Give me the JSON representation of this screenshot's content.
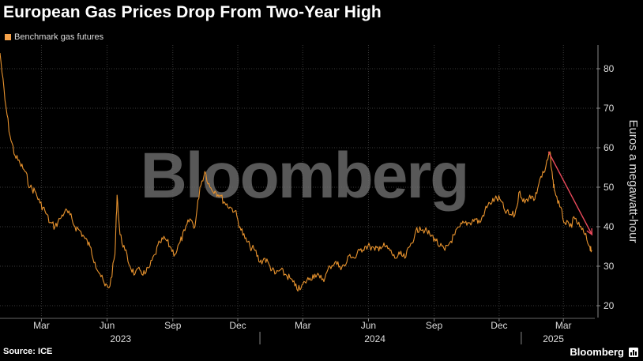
{
  "title": "European Gas Prices Drop From Two-Year High",
  "legend": {
    "label": "Benchmark gas futures",
    "color": "#f5a24a"
  },
  "source": "Source: ICE",
  "brand": "Bloomberg",
  "watermark": "Bloomberg",
  "colors": {
    "line": "#e8932e",
    "annotation": "#e8495a",
    "grid": "#3a3a3a",
    "text": "#dddddd"
  },
  "chart_data": {
    "type": "line",
    "title": "European Gas Prices Drop From Two-Year High",
    "ylabel": "Euros a megawatt-hour",
    "ylim": [
      17,
      86
    ],
    "yticks": [
      20,
      30,
      40,
      50,
      60,
      70,
      80
    ],
    "xlim": [
      "2023-01-02",
      "2025-04-14"
    ],
    "xticks": [
      {
        "date": "2023-03-01",
        "label": "Mar"
      },
      {
        "date": "2023-06-01",
        "label": "Jun"
      },
      {
        "date": "2023-09-01",
        "label": "Sep"
      },
      {
        "date": "2023-12-01",
        "label": "Dec"
      },
      {
        "date": "2024-03-01",
        "label": "Mar"
      },
      {
        "date": "2024-06-01",
        "label": "Jun"
      },
      {
        "date": "2024-09-01",
        "label": "Sep"
      },
      {
        "date": "2024-12-01",
        "label": "Dec"
      },
      {
        "date": "2025-03-01",
        "label": "Mar"
      }
    ],
    "year_labels": [
      {
        "date": "2023-06-20",
        "label": "2023"
      },
      {
        "date": "2024-06-10",
        "label": "2024"
      },
      {
        "date": "2025-02-15",
        "label": "2025"
      }
    ],
    "year_dividers": [
      "2024-01-01",
      "2025-01-01"
    ],
    "grid": true,
    "legend_position": "top-left",
    "series": [
      {
        "name": "Benchmark gas futures",
        "points": [
          [
            "2023-01-02",
            84
          ],
          [
            "2023-01-09",
            72
          ],
          [
            "2023-01-16",
            63
          ],
          [
            "2023-01-23",
            58
          ],
          [
            "2023-01-30",
            56
          ],
          [
            "2023-02-06",
            54
          ],
          [
            "2023-02-13",
            50
          ],
          [
            "2023-02-20",
            49
          ],
          [
            "2023-02-27",
            46
          ],
          [
            "2023-03-06",
            44
          ],
          [
            "2023-03-13",
            41
          ],
          [
            "2023-03-20",
            40
          ],
          [
            "2023-03-27",
            42
          ],
          [
            "2023-04-03",
            44
          ],
          [
            "2023-04-10",
            43
          ],
          [
            "2023-04-17",
            40
          ],
          [
            "2023-04-24",
            39
          ],
          [
            "2023-05-01",
            37
          ],
          [
            "2023-05-08",
            35
          ],
          [
            "2023-05-15",
            31
          ],
          [
            "2023-05-22",
            28
          ],
          [
            "2023-05-29",
            25
          ],
          [
            "2023-06-05",
            25
          ],
          [
            "2023-06-12",
            33
          ],
          [
            "2023-06-15",
            48
          ],
          [
            "2023-06-19",
            38
          ],
          [
            "2023-06-26",
            34
          ],
          [
            "2023-07-03",
            30
          ],
          [
            "2023-07-10",
            28
          ],
          [
            "2023-07-17",
            29
          ],
          [
            "2023-07-24",
            28
          ],
          [
            "2023-07-31",
            30
          ],
          [
            "2023-08-07",
            33
          ],
          [
            "2023-08-14",
            36
          ],
          [
            "2023-08-21",
            37
          ],
          [
            "2023-08-28",
            35
          ],
          [
            "2023-09-04",
            33
          ],
          [
            "2023-09-11",
            36
          ],
          [
            "2023-09-18",
            39
          ],
          [
            "2023-09-25",
            42
          ],
          [
            "2023-10-02",
            40
          ],
          [
            "2023-10-09",
            50
          ],
          [
            "2023-10-16",
            54
          ],
          [
            "2023-10-23",
            50
          ],
          [
            "2023-10-30",
            49
          ],
          [
            "2023-11-06",
            48
          ],
          [
            "2023-11-13",
            46
          ],
          [
            "2023-11-20",
            45
          ],
          [
            "2023-11-27",
            44
          ],
          [
            "2023-12-04",
            40
          ],
          [
            "2023-12-11",
            37
          ],
          [
            "2023-12-18",
            35
          ],
          [
            "2023-12-25",
            34
          ],
          [
            "2024-01-01",
            31
          ],
          [
            "2024-01-08",
            32
          ],
          [
            "2024-01-15",
            30
          ],
          [
            "2024-01-22",
            28
          ],
          [
            "2024-01-29",
            29
          ],
          [
            "2024-02-05",
            28
          ],
          [
            "2024-02-12",
            27
          ],
          [
            "2024-02-19",
            25
          ],
          [
            "2024-02-26",
            24
          ],
          [
            "2024-03-04",
            26
          ],
          [
            "2024-03-11",
            27
          ],
          [
            "2024-03-18",
            28
          ],
          [
            "2024-03-25",
            27
          ],
          [
            "2024-04-01",
            27
          ],
          [
            "2024-04-08",
            30
          ],
          [
            "2024-04-15",
            31
          ],
          [
            "2024-04-22",
            30
          ],
          [
            "2024-04-29",
            30
          ],
          [
            "2024-05-06",
            33
          ],
          [
            "2024-05-13",
            32
          ],
          [
            "2024-05-20",
            34
          ],
          [
            "2024-05-27",
            35
          ],
          [
            "2024-06-03",
            35
          ],
          [
            "2024-06-10",
            34
          ],
          [
            "2024-06-17",
            35
          ],
          [
            "2024-06-24",
            35
          ],
          [
            "2024-07-01",
            34
          ],
          [
            "2024-07-08",
            32
          ],
          [
            "2024-07-15",
            33
          ],
          [
            "2024-07-22",
            32
          ],
          [
            "2024-07-29",
            35
          ],
          [
            "2024-08-05",
            38
          ],
          [
            "2024-08-12",
            40
          ],
          [
            "2024-08-19",
            39
          ],
          [
            "2024-08-26",
            38
          ],
          [
            "2024-09-02",
            37
          ],
          [
            "2024-09-09",
            35
          ],
          [
            "2024-09-16",
            34
          ],
          [
            "2024-09-23",
            36
          ],
          [
            "2024-09-30",
            38
          ],
          [
            "2024-10-07",
            40
          ],
          [
            "2024-10-14",
            41
          ],
          [
            "2024-10-21",
            41
          ],
          [
            "2024-10-28",
            42
          ],
          [
            "2024-11-04",
            41
          ],
          [
            "2024-11-11",
            44
          ],
          [
            "2024-11-18",
            46
          ],
          [
            "2024-11-25",
            47
          ],
          [
            "2024-12-02",
            47
          ],
          [
            "2024-12-09",
            44
          ],
          [
            "2024-12-16",
            43
          ],
          [
            "2024-12-23",
            43
          ],
          [
            "2024-12-30",
            49
          ],
          [
            "2025-01-06",
            46
          ],
          [
            "2025-01-13",
            48
          ],
          [
            "2025-01-20",
            47
          ],
          [
            "2025-01-27",
            52
          ],
          [
            "2025-02-03",
            54
          ],
          [
            "2025-02-10",
            59
          ],
          [
            "2025-02-14",
            52
          ],
          [
            "2025-02-17",
            49
          ],
          [
            "2025-02-24",
            45
          ],
          [
            "2025-03-03",
            41
          ],
          [
            "2025-03-10",
            40
          ],
          [
            "2025-03-17",
            42
          ],
          [
            "2025-03-24",
            40
          ],
          [
            "2025-03-31",
            38
          ],
          [
            "2025-04-07",
            35
          ],
          [
            "2025-04-10",
            34
          ]
        ]
      }
    ],
    "annotation": {
      "type": "arrow",
      "from": [
        "2025-02-08",
        59
      ],
      "to": [
        "2025-04-10",
        38
      ]
    }
  }
}
